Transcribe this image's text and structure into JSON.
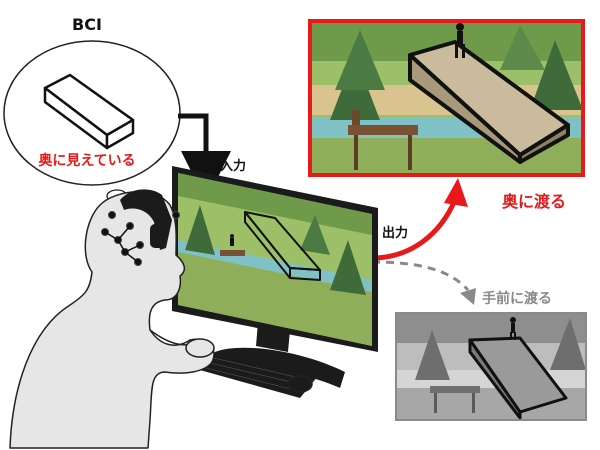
{
  "bci": {
    "title": "BCI",
    "bubble_caption": "奥に見えている"
  },
  "flow": {
    "input_label": "入力",
    "output_label": "出力"
  },
  "outcomes": {
    "far_label": "奥に渡る",
    "near_label": "手前に渡る"
  },
  "colors": {
    "accent_red": "#e8191b",
    "muted_gray": "#8a8a8a",
    "water": "#7fc1c4",
    "tree": "#3f6b3a",
    "grass": "#8fae5a",
    "ground": "#d8c38e"
  }
}
